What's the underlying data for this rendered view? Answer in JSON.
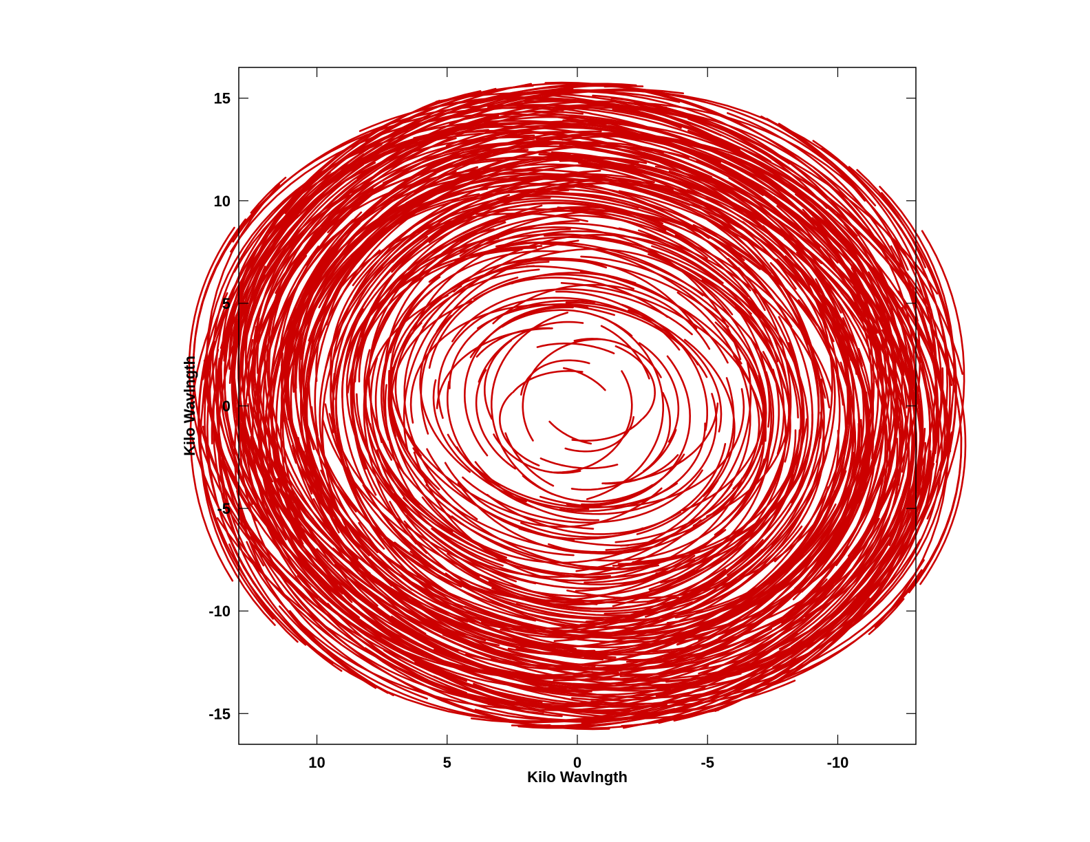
{
  "chart_data": {
    "type": "scatter",
    "title": "",
    "xlabel": "Kilo Wavlngth",
    "ylabel": "Kilo Wavlngth",
    "xlim": [
      13,
      -13
    ],
    "ylim": [
      -16.5,
      16.5
    ],
    "x_ticks": [
      10,
      5,
      0,
      -5,
      -10
    ],
    "y_ticks": [
      15,
      10,
      5,
      0,
      -5,
      -10,
      -15
    ],
    "x_tick_labels": [
      "10",
      "5",
      "0",
      "-5",
      "-10"
    ],
    "y_tick_labels": [
      "15",
      "10",
      "5",
      "0",
      "-5",
      "-10",
      "-15"
    ],
    "grid": false,
    "legend": "none",
    "mark_color": "#cc0000",
    "description_of_marks": "",
    "uv_tracks": {
      "baseline_count": 300,
      "hour_angle_range_deg": [
        -90,
        90
      ],
      "declination_deg": 60,
      "inner_gap_radius": 1.3,
      "max_radius": 15.8
    }
  }
}
